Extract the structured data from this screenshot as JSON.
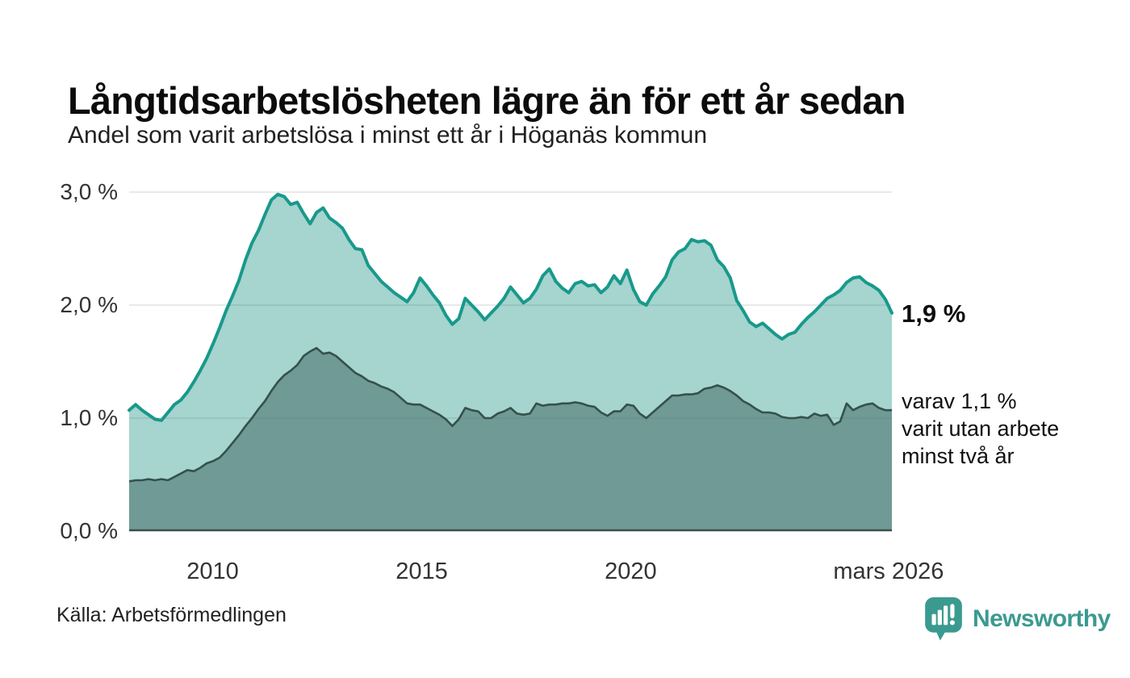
{
  "header": {
    "title": "Långtidsarbetslösheten lägre än för ett år sedan",
    "subtitle": "Andel som varit arbetslösa i minst ett år i Höganäs kommun"
  },
  "annotations": {
    "end_value_label": "1,9 %",
    "sub_lines": [
      "varav 1,1 %",
      "varit utan arbete",
      "minst två år"
    ]
  },
  "footer": {
    "source": "Källa: Arbetsförmedlingen",
    "brand": {
      "name": "Newsworthy",
      "icon": "newsworthy-pin-chart-icon"
    }
  },
  "colors": {
    "accent_teal": "#18998b",
    "light_fill": "#a6d4ce",
    "dark_fill": "#6f9a95",
    "dark_stroke": "#35514c",
    "baseline": "#3c4f4a",
    "gridline": "rgba(90,110,110,0.20)",
    "brand_teal": "#3b9a90",
    "text_dark": "#111111",
    "tick_text": "#333333"
  },
  "chart_data": {
    "type": "area",
    "title": "Långtidsarbetslösheten lägre än för ett år sedan",
    "subtitle": "Andel som varit arbetslösa i minst ett år i Höganäs kommun",
    "unit": "%",
    "grid": true,
    "legend_position": "right-annotations",
    "xlim": [
      2008.0,
      2026.25
    ],
    "ylim": [
      0,
      3.0
    ],
    "x_start": 2008.0,
    "x_step_years": 0.154661,
    "y_ticks": [
      {
        "value": 0,
        "label": "0,0 %"
      },
      {
        "value": 1,
        "label": "1,0 %"
      },
      {
        "value": 2,
        "label": "2,0 %"
      },
      {
        "value": 3,
        "label": "3,0 %"
      }
    ],
    "x_ticks": [
      {
        "value": 2010,
        "label": "2010"
      },
      {
        "value": 2015,
        "label": "2015"
      },
      {
        "value": 2020,
        "label": "2020"
      },
      {
        "value": 2026.17,
        "label": "mars 2026"
      }
    ],
    "series": [
      {
        "name": "Andel som varit arbetslösa i minst ett år",
        "end_value": 1.9,
        "end_label": "1,9 %",
        "values": [
          1.07,
          1.12,
          1.07,
          1.03,
          0.99,
          0.98,
          1.05,
          1.12,
          1.16,
          1.23,
          1.32,
          1.42,
          1.53,
          1.66,
          1.8,
          1.95,
          2.08,
          2.22,
          2.4,
          2.55,
          2.66,
          2.8,
          2.93,
          2.98,
          2.96,
          2.89,
          2.91,
          2.81,
          2.72,
          2.82,
          2.86,
          2.77,
          2.73,
          2.68,
          2.58,
          2.5,
          2.49,
          2.35,
          2.28,
          2.21,
          2.16,
          2.11,
          2.07,
          2.03,
          2.11,
          2.24,
          2.17,
          2.09,
          2.02,
          1.91,
          1.83,
          1.88,
          2.06,
          2.0,
          1.94,
          1.87,
          1.93,
          1.99,
          2.06,
          2.16,
          2.09,
          2.02,
          2.06,
          2.14,
          2.26,
          2.32,
          2.21,
          2.15,
          2.11,
          2.19,
          2.21,
          2.17,
          2.18,
          2.11,
          2.16,
          2.26,
          2.19,
          2.31,
          2.14,
          2.03,
          2.0,
          2.1,
          2.17,
          2.25,
          2.4,
          2.47,
          2.5,
          2.58,
          2.56,
          2.57,
          2.53,
          2.4,
          2.34,
          2.24,
          2.04,
          1.95,
          1.85,
          1.81,
          1.84,
          1.79,
          1.74,
          1.7,
          1.74,
          1.76,
          1.83,
          1.89,
          1.94,
          2.0,
          2.06,
          2.09,
          2.13,
          2.2,
          2.24,
          2.25,
          2.2,
          2.17,
          2.13,
          2.05,
          1.93
        ]
      },
      {
        "name": "varav utan arbete minst två år",
        "end_value": 1.1,
        "end_label": "varav 1,1 % varit utan arbete minst två år",
        "values": [
          0.44,
          0.45,
          0.45,
          0.46,
          0.45,
          0.46,
          0.45,
          0.48,
          0.51,
          0.54,
          0.53,
          0.56,
          0.6,
          0.62,
          0.65,
          0.71,
          0.78,
          0.85,
          0.93,
          1.0,
          1.08,
          1.15,
          1.24,
          1.32,
          1.38,
          1.42,
          1.47,
          1.55,
          1.59,
          1.62,
          1.57,
          1.58,
          1.55,
          1.5,
          1.45,
          1.4,
          1.37,
          1.33,
          1.31,
          1.28,
          1.26,
          1.23,
          1.18,
          1.13,
          1.12,
          1.12,
          1.09,
          1.06,
          1.03,
          0.99,
          0.93,
          0.99,
          1.09,
          1.07,
          1.06,
          1.0,
          1.0,
          1.04,
          1.06,
          1.09,
          1.04,
          1.03,
          1.04,
          1.13,
          1.11,
          1.12,
          1.12,
          1.13,
          1.13,
          1.14,
          1.13,
          1.11,
          1.1,
          1.05,
          1.02,
          1.06,
          1.06,
          1.12,
          1.11,
          1.04,
          1.0,
          1.05,
          1.1,
          1.15,
          1.2,
          1.2,
          1.21,
          1.21,
          1.22,
          1.26,
          1.27,
          1.29,
          1.27,
          1.24,
          1.2,
          1.15,
          1.12,
          1.08,
          1.05,
          1.05,
          1.04,
          1.01,
          1.0,
          1.0,
          1.01,
          1.0,
          1.04,
          1.02,
          1.03,
          0.94,
          0.97,
          1.13,
          1.07,
          1.1,
          1.12,
          1.13,
          1.09,
          1.07,
          1.07
        ]
      }
    ]
  }
}
